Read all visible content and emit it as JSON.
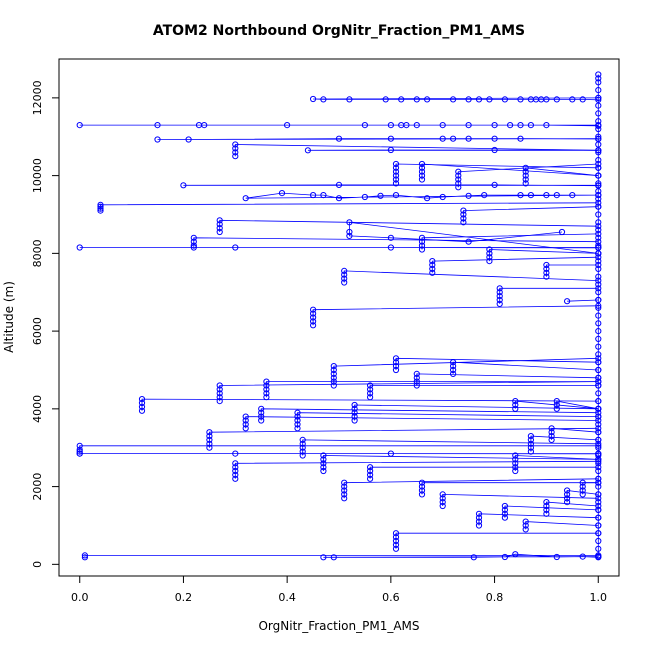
{
  "chart_data": {
    "type": "scatter",
    "title": "ATOM2 Northbound OrgNitr_Fraction_PM1_AMS",
    "xlabel": "OrgNitr_Fraction_PM1_AMS",
    "ylabel": "Altitude (m)",
    "xlim": [
      -0.04,
      1.04
    ],
    "ylim": [
      -300,
      13000
    ],
    "x_ticks": [
      0,
      0.2,
      0.4,
      0.6,
      0.8,
      1
    ],
    "x_tick_labels": [
      "0.0",
      "0.2",
      "0.4",
      "0.6",
      "0.8",
      "1.0"
    ],
    "y_ticks": [
      0,
      2000,
      4000,
      6000,
      8000,
      10000,
      12000
    ],
    "y_tick_labels": [
      "0",
      "2000",
      "4000",
      "6000",
      "8000",
      "10000",
      "12000"
    ],
    "grid": false,
    "colors": {
      "series": "#0000ff",
      "axis": "#000000"
    },
    "series": [
      {
        "x": [
          1,
          0.45,
          0.47,
          0.52,
          0.59,
          0.62,
          0.65,
          0.67,
          0.72,
          0.75,
          0.77,
          0.79,
          0.82,
          0.85,
          0.87,
          0.88,
          0.89,
          0.9,
          0.92,
          0.95,
          0.97,
          1
        ],
        "y": [
          12000,
          11970,
          11960,
          11960,
          11960,
          11960,
          11960,
          11960,
          11960,
          11960,
          11960,
          11960,
          11960,
          11960,
          11960,
          11960,
          11960,
          11960,
          11960,
          11960,
          11960,
          11950
        ]
      },
      {
        "x": [
          1,
          0.0,
          0.15,
          0.23,
          0.24,
          0.4,
          0.55,
          0.6,
          0.62,
          0.63,
          0.65,
          0.7,
          0.75,
          0.8,
          0.83,
          0.85,
          0.87,
          0.9,
          1
        ],
        "y": [
          11300,
          11300,
          11300,
          11300,
          11300,
          11300,
          11300,
          11300,
          11300,
          11300,
          11300,
          11300,
          11300,
          11300,
          11300,
          11300,
          11300,
          11300,
          11280
        ]
      },
      {
        "x": [
          1,
          0.15,
          0.21,
          0.5,
          0.6,
          0.7,
          0.72,
          0.75,
          0.8,
          0.85,
          1
        ],
        "y": [
          10950,
          10930,
          10930,
          10950,
          10950,
          10950,
          10950,
          10950,
          10950,
          10950,
          10940
        ]
      },
      {
        "x": [
          1,
          0.44,
          0.6,
          0.8,
          1
        ],
        "y": [
          10650,
          10650,
          10660,
          10660,
          10650
        ]
      },
      {
        "x": [
          1,
          0.2,
          0.5,
          0.8,
          1
        ],
        "y": [
          9750,
          9750,
          9760,
          9760,
          9740
        ]
      },
      {
        "x": [
          1,
          0.32,
          0.39,
          0.45,
          0.47,
          0.5,
          0.55,
          0.58,
          0.61,
          0.67,
          0.7,
          0.75,
          0.78,
          0.85,
          0.87,
          0.9,
          0.92,
          0.95,
          1
        ],
        "y": [
          9500,
          9420,
          9550,
          9500,
          9500,
          9420,
          9450,
          9480,
          9500,
          9420,
          9450,
          9480,
          9500,
          9500,
          9500,
          9500,
          9500,
          9500,
          9500
        ]
      },
      {
        "x": [
          1,
          0.04,
          0.04,
          0.04,
          0.04
        ],
        "y": [
          9300,
          9250,
          9200,
          9150,
          9100
        ]
      },
      {
        "x": [
          1,
          0.0,
          0.3,
          0.6,
          1
        ],
        "y": [
          8150,
          8150,
          8150,
          8150,
          8140
        ]
      },
      {
        "x": [
          1,
          0.52,
          0.52,
          0.52,
          0.6,
          0.75,
          0.93
        ],
        "y": [
          8000,
          8800,
          8550,
          8450,
          8400,
          8300,
          8550
        ]
      },
      {
        "x": [
          1,
          0.22,
          0.22,
          0.22,
          0.22
        ],
        "y": [
          8300,
          8400,
          8300,
          8200,
          8150
        ]
      },
      {
        "x": [
          1,
          0.27,
          0.27,
          0.27,
          0.27
        ],
        "y": [
          8700,
          8850,
          8750,
          8650,
          8550
        ]
      },
      {
        "x": [
          1,
          0.3,
          0.3,
          0.3,
          0.3
        ],
        "y": [
          10650,
          10800,
          10700,
          10600,
          10500
        ]
      },
      {
        "x": [
          1,
          0.51,
          0.51,
          0.51,
          0.51
        ],
        "y": [
          7300,
          7550,
          7450,
          7350,
          7250
        ]
      },
      {
        "x": [
          1,
          0.45,
          0.45,
          0.45,
          0.45,
          0.45
        ],
        "y": [
          6650,
          6550,
          6450,
          6350,
          6250,
          6150
        ]
      },
      {
        "x": [
          1,
          0.81,
          0.81,
          0.81,
          0.81,
          0.81
        ],
        "y": [
          7100,
          7100,
          7000,
          6900,
          6800,
          6700
        ]
      },
      {
        "x": [
          1,
          0.94
        ],
        "y": [
          6800,
          6770
        ]
      },
      {
        "x": [
          1,
          0.49,
          0.49,
          0.49,
          0.49,
          0.49,
          0.49
        ],
        "y": [
          5300,
          5100,
          5000,
          4900,
          4800,
          4700,
          4600
        ]
      },
      {
        "x": [
          1,
          0.27,
          0.27,
          0.27,
          0.27,
          0.27
        ],
        "y": [
          4700,
          4600,
          4500,
          4400,
          4300,
          4200
        ]
      },
      {
        "x": [
          1,
          0.36,
          0.36,
          0.36,
          0.36,
          0.36
        ],
        "y": [
          4700,
          4700,
          4600,
          4500,
          4400,
          4300
        ]
      },
      {
        "x": [
          1,
          0.12,
          0.12,
          0.12,
          0.12
        ],
        "y": [
          4200,
          4250,
          4150,
          4050,
          3950
        ]
      },
      {
        "x": [
          1,
          0.53,
          0.53,
          0.53,
          0.53,
          0.53
        ],
        "y": [
          4000,
          4100,
          4000,
          3900,
          3800,
          3700
        ]
      },
      {
        "x": [
          1,
          0.25,
          0.25,
          0.25,
          0.25,
          0.25
        ],
        "y": [
          3500,
          3400,
          3300,
          3200,
          3100,
          3000
        ]
      },
      {
        "x": [
          1,
          0.0,
          0.0,
          0.0,
          0.0
        ],
        "y": [
          3050,
          3050,
          2950,
          2900,
          2850
        ]
      },
      {
        "x": [
          1,
          0.0,
          0.3,
          0.6,
          1
        ],
        "y": [
          2850,
          2850,
          2850,
          2850,
          2840
        ]
      },
      {
        "x": [
          1,
          0.3,
          0.3,
          0.3,
          0.3,
          0.3
        ],
        "y": [
          2650,
          2600,
          2500,
          2400,
          2300,
          2200
        ]
      },
      {
        "x": [
          1,
          0.51,
          0.51,
          0.51,
          0.51,
          0.51
        ],
        "y": [
          2200,
          2100,
          2000,
          1900,
          1800,
          1700
        ]
      },
      {
        "x": [
          1,
          0.77,
          0.77,
          0.77,
          0.77
        ],
        "y": [
          1200,
          1300,
          1200,
          1100,
          1000
        ]
      },
      {
        "x": [
          1,
          0.61,
          0.61,
          0.61,
          0.61,
          0.61
        ],
        "y": [
          800,
          800,
          700,
          600,
          500,
          400
        ]
      },
      {
        "x": [
          1,
          0.01,
          0.01
        ],
        "y": [
          230,
          230,
          180
        ]
      },
      {
        "x": [
          1,
          0.47,
          0.49,
          0.76,
          0.82,
          0.84,
          0.92,
          0.97,
          1
        ],
        "y": [
          200,
          180,
          180,
          180,
          190,
          260,
          190,
          200,
          180
        ]
      },
      {
        "x": [
          1,
          1,
          1,
          1,
          1,
          1,
          1,
          1,
          1,
          1,
          1,
          1,
          1,
          1,
          1,
          1,
          1,
          1,
          1,
          1,
          1,
          1,
          1,
          1,
          1,
          1,
          1,
          1,
          1,
          1,
          1,
          1,
          1,
          1,
          1,
          1,
          1,
          1,
          1,
          1,
          1,
          1,
          1,
          1,
          1,
          1,
          1,
          1,
          1,
          1,
          1,
          1,
          1,
          1,
          1,
          1,
          1,
          1,
          1,
          1,
          1,
          1,
          1,
          1
        ],
        "y": [
          200,
          400,
          600,
          800,
          1000,
          1200,
          1400,
          1600,
          1800,
          2000,
          2200,
          2400,
          2600,
          2800,
          3000,
          3200,
          3400,
          3600,
          3800,
          4000,
          4200,
          4400,
          4600,
          4800,
          5000,
          5200,
          5400,
          5600,
          5800,
          6000,
          6200,
          6400,
          6600,
          6800,
          7000,
          7200,
          7400,
          7600,
          7800,
          8000,
          8200,
          8400,
          8600,
          8800,
          9000,
          9200,
          9400,
          9600,
          9800,
          10000,
          10200,
          10400,
          10600,
          10800,
          11000,
          11200,
          11400,
          11600,
          11800,
          12000,
          12200,
          12400,
          12500,
          12600
        ]
      },
      {
        "x": [
          1,
          0.61,
          0.61,
          0.61,
          0.61,
          0.61,
          0.61
        ],
        "y": [
          10200,
          10300,
          10200,
          10100,
          10000,
          9900,
          9800
        ]
      },
      {
        "x": [
          1,
          0.73,
          0.73,
          0.73,
          0.73,
          0.73
        ],
        "y": [
          10300,
          10100,
          10000,
          9900,
          9800,
          9700
        ]
      },
      {
        "x": [
          1,
          0.86,
          0.86,
          0.86,
          0.86,
          0.86
        ],
        "y": [
          10000,
          10200,
          10100,
          10000,
          9900,
          9800
        ]
      },
      {
        "x": [
          1,
          0.66,
          0.66,
          0.66,
          0.66,
          0.66
        ],
        "y": [
          10000,
          10300,
          10200,
          10100,
          10000,
          9900
        ]
      },
      {
        "x": [
          1,
          0.74,
          0.74,
          0.74,
          0.74
        ],
        "y": [
          9200,
          9100,
          9000,
          8900,
          8800
        ]
      },
      {
        "x": [
          1,
          0.66,
          0.66,
          0.66,
          0.66
        ],
        "y": [
          8500,
          8400,
          8300,
          8200,
          8100
        ]
      },
      {
        "x": [
          1,
          0.68,
          0.68,
          0.68,
          0.68
        ],
        "y": [
          7900,
          7800,
          7700,
          7600,
          7500
        ]
      },
      {
        "x": [
          1,
          0.9,
          0.9,
          0.9,
          0.9
        ],
        "y": [
          7700,
          7700,
          7600,
          7500,
          7400
        ]
      },
      {
        "x": [
          1,
          0.79,
          0.79,
          0.79,
          0.79
        ],
        "y": [
          8000,
          8100,
          8000,
          7900,
          7800
        ]
      },
      {
        "x": [
          1,
          0.61,
          0.61,
          0.61,
          0.61
        ],
        "y": [
          5200,
          5300,
          5200,
          5100,
          5000
        ]
      },
      {
        "x": [
          1,
          0.72,
          0.72,
          0.72,
          0.72
        ],
        "y": [
          5000,
          5200,
          5100,
          5000,
          4900
        ]
      },
      {
        "x": [
          1,
          0.65,
          0.65,
          0.65,
          0.65
        ],
        "y": [
          4800,
          4900,
          4800,
          4700,
          4600
        ]
      },
      {
        "x": [
          1,
          0.56,
          0.56,
          0.56,
          0.56
        ],
        "y": [
          4600,
          4600,
          4500,
          4400,
          4300
        ]
      },
      {
        "x": [
          1,
          0.42,
          0.42,
          0.42,
          0.42,
          0.42
        ],
        "y": [
          3800,
          3900,
          3800,
          3700,
          3600,
          3500
        ]
      },
      {
        "x": [
          1,
          0.35,
          0.35,
          0.35,
          0.35
        ],
        "y": [
          3900,
          4000,
          3900,
          3800,
          3700
        ]
      },
      {
        "x": [
          1,
          0.32,
          0.32,
          0.32,
          0.32
        ],
        "y": [
          3700,
          3800,
          3700,
          3600,
          3500
        ]
      },
      {
        "x": [
          1,
          0.43,
          0.43,
          0.43,
          0.43,
          0.43
        ],
        "y": [
          3100,
          3200,
          3100,
          3000,
          2900,
          2800
        ]
      },
      {
        "x": [
          1,
          0.47,
          0.47,
          0.47,
          0.47,
          0.47
        ],
        "y": [
          2700,
          2800,
          2700,
          2600,
          2500,
          2400
        ]
      },
      {
        "x": [
          1,
          0.56,
          0.56,
          0.56,
          0.56
        ],
        "y": [
          2500,
          2500,
          2400,
          2300,
          2200
        ]
      },
      {
        "x": [
          1,
          0.66,
          0.66,
          0.66,
          0.66
        ],
        "y": [
          2100,
          2100,
          2000,
          1900,
          1800
        ]
      },
      {
        "x": [
          1,
          0.84,
          0.84,
          0.84,
          0.84,
          0.84
        ],
        "y": [
          2700,
          2800,
          2700,
          2600,
          2500,
          2400
        ]
      },
      {
        "x": [
          1,
          0.87,
          0.87,
          0.87,
          0.87,
          0.87
        ],
        "y": [
          3200,
          3300,
          3200,
          3100,
          3000,
          2900
        ]
      },
      {
        "x": [
          1,
          0.91,
          0.91,
          0.91,
          0.91
        ],
        "y": [
          3400,
          3500,
          3400,
          3300,
          3200
        ]
      },
      {
        "x": [
          1,
          0.9,
          0.9,
          0.9,
          0.9
        ],
        "y": [
          1500,
          1600,
          1500,
          1400,
          1300
        ]
      },
      {
        "x": [
          1,
          0.94,
          0.94,
          0.94,
          0.94
        ],
        "y": [
          1800,
          1900,
          1800,
          1700,
          1600
        ]
      },
      {
        "x": [
          1,
          0.97,
          0.97,
          0.97,
          0.97
        ],
        "y": [
          2100,
          2100,
          2000,
          1900,
          1800
        ]
      },
      {
        "x": [
          1,
          0.7,
          0.7,
          0.7,
          0.7
        ],
        "y": [
          1700,
          1800,
          1700,
          1600,
          1500
        ]
      },
      {
        "x": [
          1,
          0.82,
          0.82,
          0.82,
          0.82
        ],
        "y": [
          1400,
          1500,
          1400,
          1300,
          1200
        ]
      },
      {
        "x": [
          1,
          0.86,
          0.86,
          0.86
        ],
        "y": [
          1000,
          1100,
          1000,
          900
        ]
      },
      {
        "x": [
          1,
          0.92,
          0.92,
          0.92
        ],
        "y": [
          4000,
          4200,
          4100,
          4000
        ]
      },
      {
        "x": [
          1,
          0.84,
          0.84,
          0.84
        ],
        "y": [
          4000,
          4200,
          4100,
          4000
        ]
      }
    ]
  }
}
